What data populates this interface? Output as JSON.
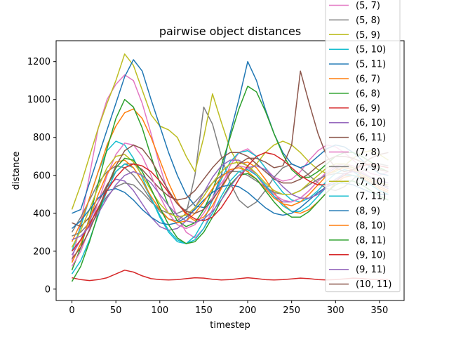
{
  "chart_data": {
    "type": "line",
    "title": "pairwise object distances",
    "xlabel": "timestep",
    "ylabel": "distance",
    "xlim": [
      -18,
      378
    ],
    "ylim": [
      -60,
      1310
    ],
    "xticks": [
      0,
      50,
      100,
      150,
      200,
      250,
      300,
      350
    ],
    "yticks": [
      0,
      200,
      400,
      600,
      800,
      1000,
      1200
    ],
    "grid": false,
    "legend_position": "right, overflowing top edge",
    "x": [
      0,
      10,
      20,
      30,
      40,
      50,
      60,
      70,
      80,
      90,
      100,
      110,
      120,
      130,
      140,
      150,
      160,
      170,
      180,
      190,
      200,
      210,
      220,
      230,
      240,
      250,
      260,
      270,
      280,
      290,
      300,
      310,
      320,
      330,
      340,
      350,
      360
    ],
    "series": [
      {
        "name": "(5, 7)",
        "color": "#e377c2",
        "values": [
          150,
          350,
          600,
          850,
          1000,
          1080,
          1130,
          1100,
          980,
          820,
          650,
          500,
          380,
          300,
          270,
          320,
          420,
          540,
          650,
          720,
          740,
          700,
          640,
          590,
          570,
          580,
          620,
          680,
          730,
          760,
          750,
          720,
          680,
          640,
          610,
          600,
          620
        ]
      },
      {
        "name": "(5, 8)",
        "color": "#7f7f7f",
        "values": [
          300,
          380,
          470,
          560,
          620,
          650,
          640,
          600,
          540,
          470,
          410,
          370,
          360,
          400,
          600,
          960,
          870,
          700,
          560,
          470,
          430,
          460,
          520,
          590,
          640,
          660,
          640,
          600,
          560,
          530,
          520,
          540,
          580,
          620,
          650,
          660,
          650
        ]
      },
      {
        "name": "(5, 9)",
        "color": "#bcbd22",
        "values": [
          420,
          550,
          700,
          850,
          980,
          1100,
          1240,
          1180,
          1050,
          920,
          860,
          840,
          800,
          700,
          620,
          800,
          1030,
          880,
          740,
          650,
          620,
          660,
          720,
          760,
          780,
          760,
          720,
          670,
          630,
          610,
          620,
          650,
          690,
          720,
          730,
          710,
          680
        ]
      },
      {
        "name": "(5, 10)",
        "color": "#17becf",
        "values": [
          200,
          330,
          480,
          620,
          730,
          780,
          760,
          690,
          590,
          480,
          380,
          300,
          250,
          240,
          280,
          360,
          470,
          580,
          670,
          720,
          730,
          700,
          640,
          570,
          510,
          470,
          460,
          480,
          520,
          570,
          610,
          630,
          620,
          590,
          550,
          520,
          500
        ]
      },
      {
        "name": "(5, 11)",
        "color": "#1f77b4",
        "values": [
          400,
          420,
          560,
          700,
          840,
          980,
          1120,
          1210,
          1150,
          1000,
          860,
          720,
          600,
          500,
          440,
          430,
          480,
          600,
          820,
          1000,
          1200,
          1100,
          950,
          820,
          720,
          660,
          640,
          660,
          700,
          740,
          760,
          750,
          720,
          680,
          640,
          610,
          600
        ]
      },
      {
        "name": "(6, 7)",
        "color": "#ff7f0e",
        "values": [
          250,
          350,
          480,
          620,
          760,
          860,
          930,
          950,
          900,
          800,
          680,
          560,
          460,
          390,
          360,
          380,
          440,
          530,
          610,
          660,
          670,
          640,
          580,
          510,
          450,
          410,
          400,
          420,
          460,
          510,
          560,
          590,
          600,
          590,
          560,
          530,
          510
        ]
      },
      {
        "name": "(6, 8)",
        "color": "#2ca02c",
        "values": [
          100,
          220,
          380,
          560,
          740,
          900,
          1000,
          960,
          850,
          700,
          560,
          440,
          360,
          330,
          350,
          420,
          520,
          650,
          800,
          950,
          1070,
          1040,
          940,
          820,
          710,
          630,
          590,
          590,
          620,
          660,
          700,
          720,
          720,
          700,
          670,
          640,
          620
        ]
      },
      {
        "name": "(6, 9)",
        "color": "#d62728",
        "values": [
          60,
          50,
          45,
          50,
          60,
          80,
          100,
          90,
          70,
          55,
          50,
          48,
          50,
          55,
          60,
          58,
          52,
          48,
          50,
          55,
          60,
          56,
          50,
          48,
          50,
          54,
          58,
          55,
          50,
          48,
          50,
          54,
          58,
          56,
          52,
          50,
          52
        ]
      },
      {
        "name": "(6, 10)",
        "color": "#9467bd",
        "values": [
          180,
          260,
          360,
          460,
          540,
          580,
          570,
          520,
          450,
          380,
          330,
          310,
          320,
          360,
          430,
          510,
          590,
          650,
          680,
          680,
          650,
          600,
          540,
          490,
          460,
          460,
          480,
          520,
          570,
          610,
          640,
          650,
          640,
          610,
          580,
          550,
          530
        ]
      },
      {
        "name": "(6, 11)",
        "color": "#8c564b",
        "values": [
          350,
          330,
          380,
          460,
          550,
          620,
          660,
          660,
          630,
          580,
          530,
          490,
          470,
          480,
          520,
          580,
          640,
          690,
          720,
          720,
          700,
          660,
          620,
          580,
          560,
          560,
          580,
          610,
          650,
          680,
          700,
          700,
          690,
          670,
          650,
          630,
          620
        ]
      },
      {
        "name": "(7, 8)",
        "color": "#e377c2",
        "values": [
          120,
          200,
          320,
          460,
          600,
          710,
          770,
          760,
          700,
          600,
          490,
          400,
          340,
          320,
          340,
          400,
          480,
          560,
          620,
          650,
          640,
          600,
          550,
          500,
          470,
          460,
          480,
          520,
          570,
          620,
          650,
          660,
          650,
          620,
          590,
          560,
          540
        ]
      },
      {
        "name": "(7, 9)",
        "color": "#7f7f7f",
        "values": [
          280,
          300,
          350,
          420,
          490,
          540,
          560,
          550,
          510,
          460,
          420,
          400,
          400,
          420,
          460,
          510,
          560,
          600,
          620,
          620,
          600,
          570,
          540,
          510,
          500,
          500,
          520,
          550,
          580,
          600,
          610,
          610,
          600,
          580,
          560,
          550,
          540
        ]
      },
      {
        "name": "(7, 10)",
        "color": "#bcbd22",
        "values": [
          220,
          310,
          420,
          540,
          640,
          700,
          710,
          670,
          600,
          520,
          450,
          400,
          380,
          390,
          430,
          490,
          560,
          620,
          660,
          670,
          650,
          610,
          560,
          520,
          500,
          500,
          520,
          560,
          600,
          640,
          660,
          660,
          640,
          610,
          580,
          560,
          550
        ]
      },
      {
        "name": "(7, 11)",
        "color": "#17becf",
        "values": [
          80,
          150,
          260,
          390,
          520,
          620,
          660,
          640,
          570,
          480,
          390,
          310,
          260,
          240,
          260,
          320,
          400,
          490,
          570,
          620,
          630,
          600,
          550,
          490,
          440,
          410,
          410,
          440,
          490,
          540,
          580,
          600,
          600,
          580,
          550,
          520,
          500
        ]
      },
      {
        "name": "(8, 9)",
        "color": "#1f77b4",
        "values": [
          320,
          360,
          420,
          480,
          520,
          530,
          510,
          470,
          420,
          380,
          350,
          340,
          350,
          380,
          420,
          470,
          510,
          540,
          550,
          540,
          510,
          470,
          430,
          400,
          390,
          400,
          430,
          470,
          510,
          540,
          560,
          560,
          550,
          530,
          510,
          500,
          500
        ]
      },
      {
        "name": "(8, 10)",
        "color": "#ff7f0e",
        "values": [
          140,
          240,
          370,
          500,
          610,
          670,
          680,
          640,
          570,
          490,
          420,
          370,
          350,
          360,
          400,
          460,
          530,
          590,
          630,
          640,
          620,
          580,
          530,
          480,
          450,
          440,
          460,
          500,
          550,
          600,
          630,
          640,
          630,
          600,
          570,
          540,
          520
        ]
      },
      {
        "name": "(8, 11)",
        "color": "#2ca02c",
        "values": [
          40,
          120,
          250,
          400,
          540,
          640,
          690,
          680,
          620,
          530,
          430,
          340,
          270,
          240,
          250,
          300,
          380,
          470,
          550,
          600,
          610,
          580,
          520,
          460,
          410,
          380,
          380,
          410,
          460,
          510,
          550,
          570,
          570,
          550,
          520,
          490,
          470
        ]
      },
      {
        "name": "(9, 10)",
        "color": "#d62728",
        "values": [
          200,
          260,
          340,
          430,
          520,
          590,
          640,
          660,
          650,
          620,
          570,
          510,
          450,
          400,
          370,
          360,
          380,
          430,
          500,
          580,
          650,
          700,
          720,
          710,
          680,
          640,
          600,
          570,
          550,
          550,
          570,
          600,
          630,
          650,
          660,
          650,
          640
        ]
      },
      {
        "name": "(9, 11)",
        "color": "#9467bd",
        "values": [
          260,
          280,
          330,
          400,
          480,
          550,
          600,
          620,
          600,
          560,
          500,
          440,
          390,
          360,
          350,
          370,
          410,
          470,
          540,
          600,
          640,
          650,
          630,
          590,
          540,
          500,
          480,
          480,
          500,
          540,
          580,
          610,
          620,
          610,
          590,
          570,
          560
        ]
      },
      {
        "name": "(10, 11)",
        "color": "#8c564b",
        "values": [
          160,
          220,
          310,
          420,
          540,
          650,
          730,
          760,
          740,
          680,
          600,
          520,
          450,
          410,
          400,
          420,
          470,
          540,
          610,
          660,
          690,
          690,
          670,
          640,
          650,
          760,
          1150,
          980,
          820,
          700,
          640,
          620,
          630,
          660,
          690,
          710,
          720
        ]
      }
    ]
  }
}
